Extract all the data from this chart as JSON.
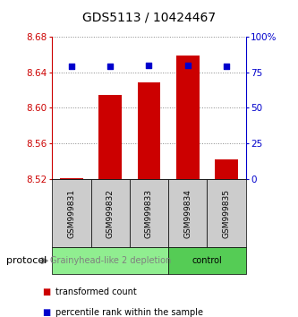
{
  "title": "GDS5113 / 10424467",
  "samples": [
    "GSM999831",
    "GSM999832",
    "GSM999833",
    "GSM999834",
    "GSM999835"
  ],
  "bar_values": [
    8.521,
    8.614,
    8.628,
    8.659,
    8.542
  ],
  "bar_base": 8.52,
  "percentile_values": [
    79,
    79,
    80,
    80,
    79
  ],
  "ylim": [
    8.52,
    8.68
  ],
  "yticks": [
    8.52,
    8.56,
    8.6,
    8.64,
    8.68
  ],
  "right_yticks": [
    0,
    25,
    50,
    75,
    100
  ],
  "bar_color": "#cc0000",
  "percentile_color": "#0000cc",
  "bar_width": 0.6,
  "groups": [
    {
      "label": "Grainyhead-like 2 depletion",
      "n_samples": 3,
      "color": "#90ee90",
      "text_color": "#808080"
    },
    {
      "label": "control",
      "n_samples": 2,
      "color": "#55cc55",
      "text_color": "#000000"
    }
  ],
  "protocol_label": "protocol",
  "legend_bar_label": "transformed count",
  "legend_pct_label": "percentile rank within the sample",
  "dotted_line_color": "#888888",
  "sample_box_color": "#cccccc",
  "background_color": "#ffffff",
  "title_fontsize": 10,
  "tick_fontsize": 7.5,
  "sample_fontsize": 6.5,
  "group_fontsize": 7,
  "legend_fontsize": 7,
  "protocol_fontsize": 8
}
